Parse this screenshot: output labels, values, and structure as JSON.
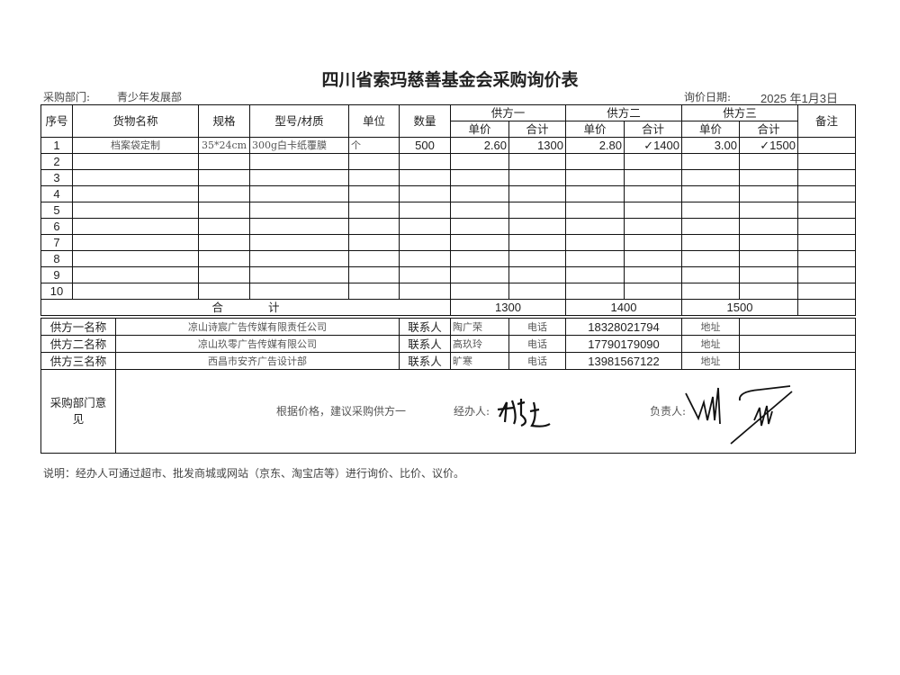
{
  "title": "四川省索玛慈善基金会采购询价表",
  "dept_label": "采购部门:",
  "dept_value": "青少年发展部",
  "date_label": "询价日期:",
  "date_value": "2025 年1月3日",
  "headers": {
    "seq": "序号",
    "name": "货物名称",
    "spec": "规格",
    "model": "型号/材质",
    "unit": "单位",
    "qty": "数量",
    "s1": "供方一",
    "s2": "供方二",
    "s3": "供方三",
    "remark": "备注",
    "price": "单价",
    "total": "合计"
  },
  "items": [
    {
      "seq": "1",
      "name": "档案袋定制",
      "spec": "35*24cm",
      "model": "300g白卡纸覆膜",
      "unit": "个",
      "qty": "500",
      "p1": "2.60",
      "t1": "1300",
      "p2": "2.80",
      "t2": "✓1400",
      "p3": "3.00",
      "t3": "✓1500",
      "remark": ""
    },
    {
      "seq": "2"
    },
    {
      "seq": "3"
    },
    {
      "seq": "4"
    },
    {
      "seq": "5"
    },
    {
      "seq": "6"
    },
    {
      "seq": "7"
    },
    {
      "seq": "8"
    },
    {
      "seq": "9"
    },
    {
      "seq": "10"
    }
  ],
  "sum": {
    "label": "合　　　　计",
    "s1": "1300",
    "s2": "1400",
    "s3": "1500"
  },
  "suppliers": [
    {
      "label": "供方一名称",
      "name": "凉山诗宸广告传媒有限责任公司",
      "contact_label": "联系人",
      "contact": "陶广荣",
      "phone_label": "电话",
      "phone": "18328021794",
      "addr_label": "地址",
      "addr": ""
    },
    {
      "label": "供方二名称",
      "name": "凉山玖零广告传媒有限公司",
      "contact_label": "联系人",
      "contact": "高玖玲",
      "phone_label": "电话",
      "phone": "17790179090",
      "addr_label": "地址",
      "addr": ""
    },
    {
      "label": "供方三名称",
      "name": "西昌市安齐广告设计部",
      "contact_label": "联系人",
      "contact": "旷寒",
      "phone_label": "电话",
      "phone": "13981567122",
      "addr_label": "地址",
      "addr": ""
    }
  ],
  "opinion": {
    "label": "采购部门意见",
    "text": "根据价格，建议采购供方一",
    "handler_label": "经办人:",
    "handler_signature": "杨婕",
    "manager_label": "负责人:",
    "manager_signature": "handwritten signature"
  },
  "note": "说明：经办人可通过超市、批发商城或网站（京东、淘宝店等）进行询价、比价、议价。"
}
